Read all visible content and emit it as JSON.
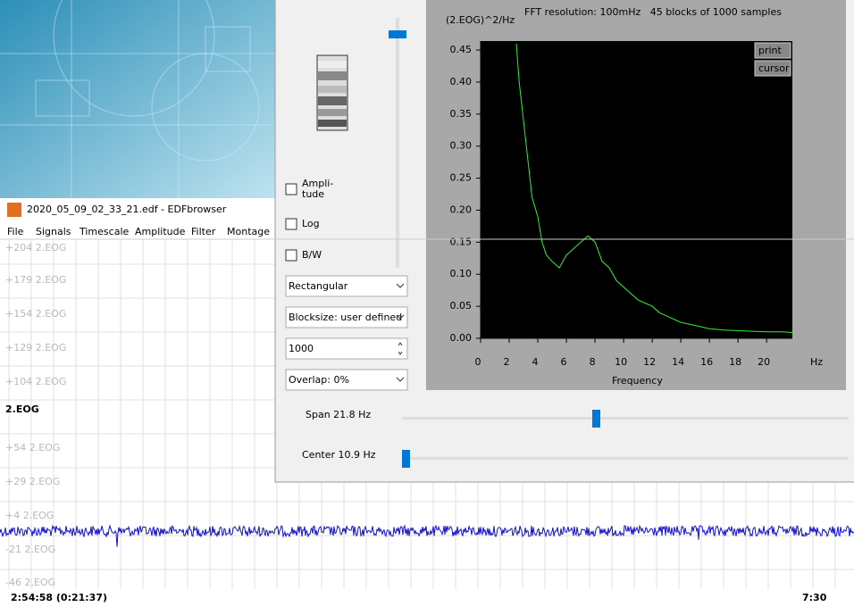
{
  "edf_window": {
    "title": "2020_05_09_02_33_21.edf - EDFbrowser",
    "menu": [
      "File",
      "Signals",
      "Timescale",
      "Amplitude",
      "Filter",
      "Montage"
    ],
    "trace_labels": [
      "+204 2.EOG",
      "+179 2.EOG",
      "+154 2.EOG",
      "+129 2.EOG",
      "+104 2.EOG",
      "2.EOG",
      "+54 2.EOG",
      "+29 2.EOG",
      "+4 2.EOG",
      "-21 2.EOG",
      "-46 2.EOG"
    ],
    "time_left": "2:54:58 (0:21:37)",
    "time_right": "7:30"
  },
  "spectrum_window": {
    "checkboxes": [
      [
        "Ampli-",
        "tude"
      ],
      [
        "Log"
      ],
      [
        "B/W"
      ]
    ],
    "window_function": "Rectangular",
    "blocksize": "Blocksize: user defined",
    "samples": "1000",
    "overlap": "Overlap: 0%",
    "span": "Span 21.8 Hz",
    "center": "Center 10.9 Hz",
    "buttons": [
      "print",
      "cursor"
    ]
  },
  "chart_data": {
    "type": "line",
    "subtitle": "FFT resolution: 100mHz   45 blocks of 1000 samples",
    "y_label": "(2.EOG)^2/Hz",
    "x_label": "Frequency",
    "x_unit": "Hz",
    "x": [
      2.5,
      2.7,
      3.0,
      3.3,
      3.6,
      4.0,
      4.3,
      4.6,
      5.0,
      5.5,
      6.0,
      6.5,
      7.0,
      7.5,
      8.0,
      8.5,
      9.0,
      9.5,
      10.0,
      10.5,
      11.0,
      11.5,
      12.0,
      12.5,
      13.0,
      14.0,
      15.0,
      16.0,
      17.0,
      18.0,
      19.0,
      20.0,
      21.0,
      21.8
    ],
    "values": [
      0.46,
      0.4,
      0.34,
      0.28,
      0.22,
      0.19,
      0.15,
      0.13,
      0.12,
      0.11,
      0.13,
      0.14,
      0.15,
      0.16,
      0.15,
      0.12,
      0.11,
      0.09,
      0.08,
      0.07,
      0.06,
      0.055,
      0.05,
      0.04,
      0.035,
      0.025,
      0.02,
      0.015,
      0.013,
      0.012,
      0.011,
      0.01,
      0.01,
      0.009
    ],
    "color": "#33ee33",
    "xlim": [
      0,
      21.8
    ],
    "ylim": [
      0,
      0.464
    ],
    "xticks": [
      0,
      2,
      4,
      6,
      8,
      10,
      12,
      14,
      16,
      18,
      20
    ],
    "yticks": [
      {
        "value": 0,
        "label": "0.00"
      },
      {
        "value": 0.05,
        "label": "0.05"
      },
      {
        "value": 0.1,
        "label": "0.10"
      },
      {
        "value": 0.15,
        "label": "0.15"
      },
      {
        "value": 0.2,
        "label": "0.20"
      },
      {
        "value": 0.25,
        "label": "0.25"
      },
      {
        "value": 0.3,
        "label": "0.30"
      },
      {
        "value": 0.35,
        "label": "0.35"
      },
      {
        "value": 0.4,
        "label": "0.40"
      },
      {
        "value": 0.45,
        "label": "0.45"
      }
    ]
  }
}
